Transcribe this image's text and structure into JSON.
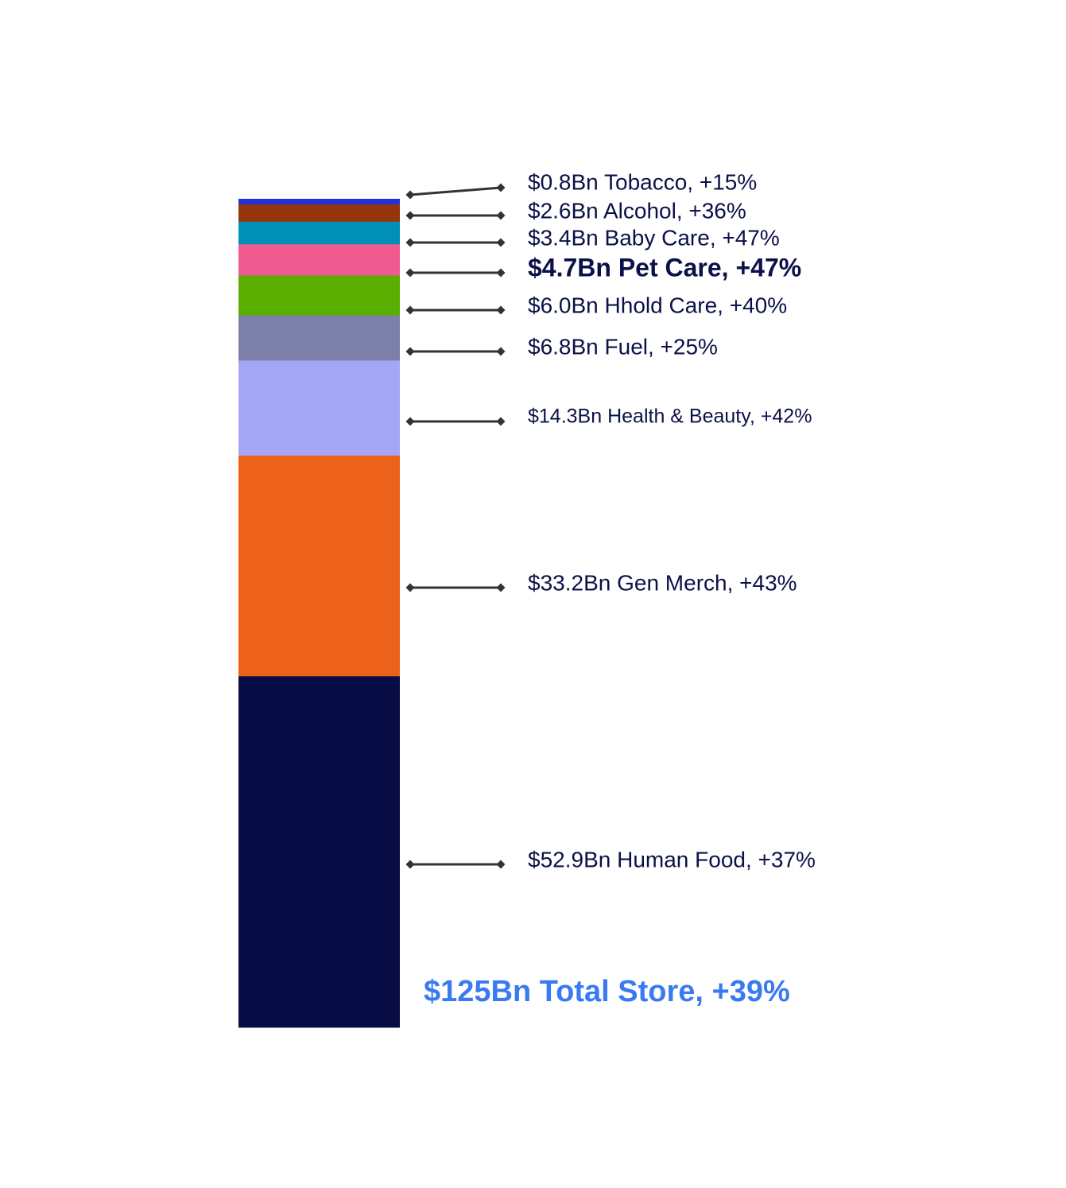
{
  "chart_data": {
    "type": "bar",
    "stacked": true,
    "unit": "$Bn",
    "segments": [
      {
        "category": "Human Food",
        "value": 52.9,
        "growth": "+37%",
        "label": "$52.9Bn Human Food, +37%",
        "color": "#080c45",
        "emphasis": false
      },
      {
        "category": "Gen Merch",
        "value": 33.2,
        "growth": "+43%",
        "label": "$33.2Bn Gen Merch, +43%",
        "color": "#ed621b",
        "emphasis": false
      },
      {
        "category": "Health & Beauty",
        "value": 14.3,
        "growth": "+42%",
        "label": "$14.3Bn Health & Beauty, +42%",
        "color": "#a3a7f5",
        "emphasis": false
      },
      {
        "category": "Fuel",
        "value": 6.8,
        "growth": "+25%",
        "label": "$6.8Bn Fuel, +25%",
        "color": "#7b7fa9",
        "emphasis": false
      },
      {
        "category": "Hhold Care",
        "value": 6.0,
        "growth": "+40%",
        "label": "$6.0Bn Hhold Care, +40%",
        "color": "#5aae00",
        "emphasis": false
      },
      {
        "category": "Pet Care",
        "value": 4.7,
        "growth": "+47%",
        "label": "$4.7Bn Pet Care, +47%",
        "color": "#ef5a8f",
        "emphasis": true
      },
      {
        "category": "Baby Care",
        "value": 3.4,
        "growth": "+47%",
        "label": "$3.4Bn Baby Care, +47%",
        "color": "#0090b7",
        "emphasis": false
      },
      {
        "category": "Alcohol",
        "value": 2.6,
        "growth": "+36%",
        "label": "$2.6Bn Alcohol, +36%",
        "color": "#94350c",
        "emphasis": false
      },
      {
        "category": "Tobacco",
        "value": 0.8,
        "growth": "+15%",
        "label": "$0.8Bn Tobacco, +15%",
        "color": "#2530d8",
        "emphasis": false
      }
    ],
    "total": {
      "value": 125,
      "growth": "+39%",
      "label": "$125Bn Total Store, +39%",
      "color": "#3a7af0"
    },
    "connector_color": "#333333",
    "text_color": "#0b1148"
  }
}
